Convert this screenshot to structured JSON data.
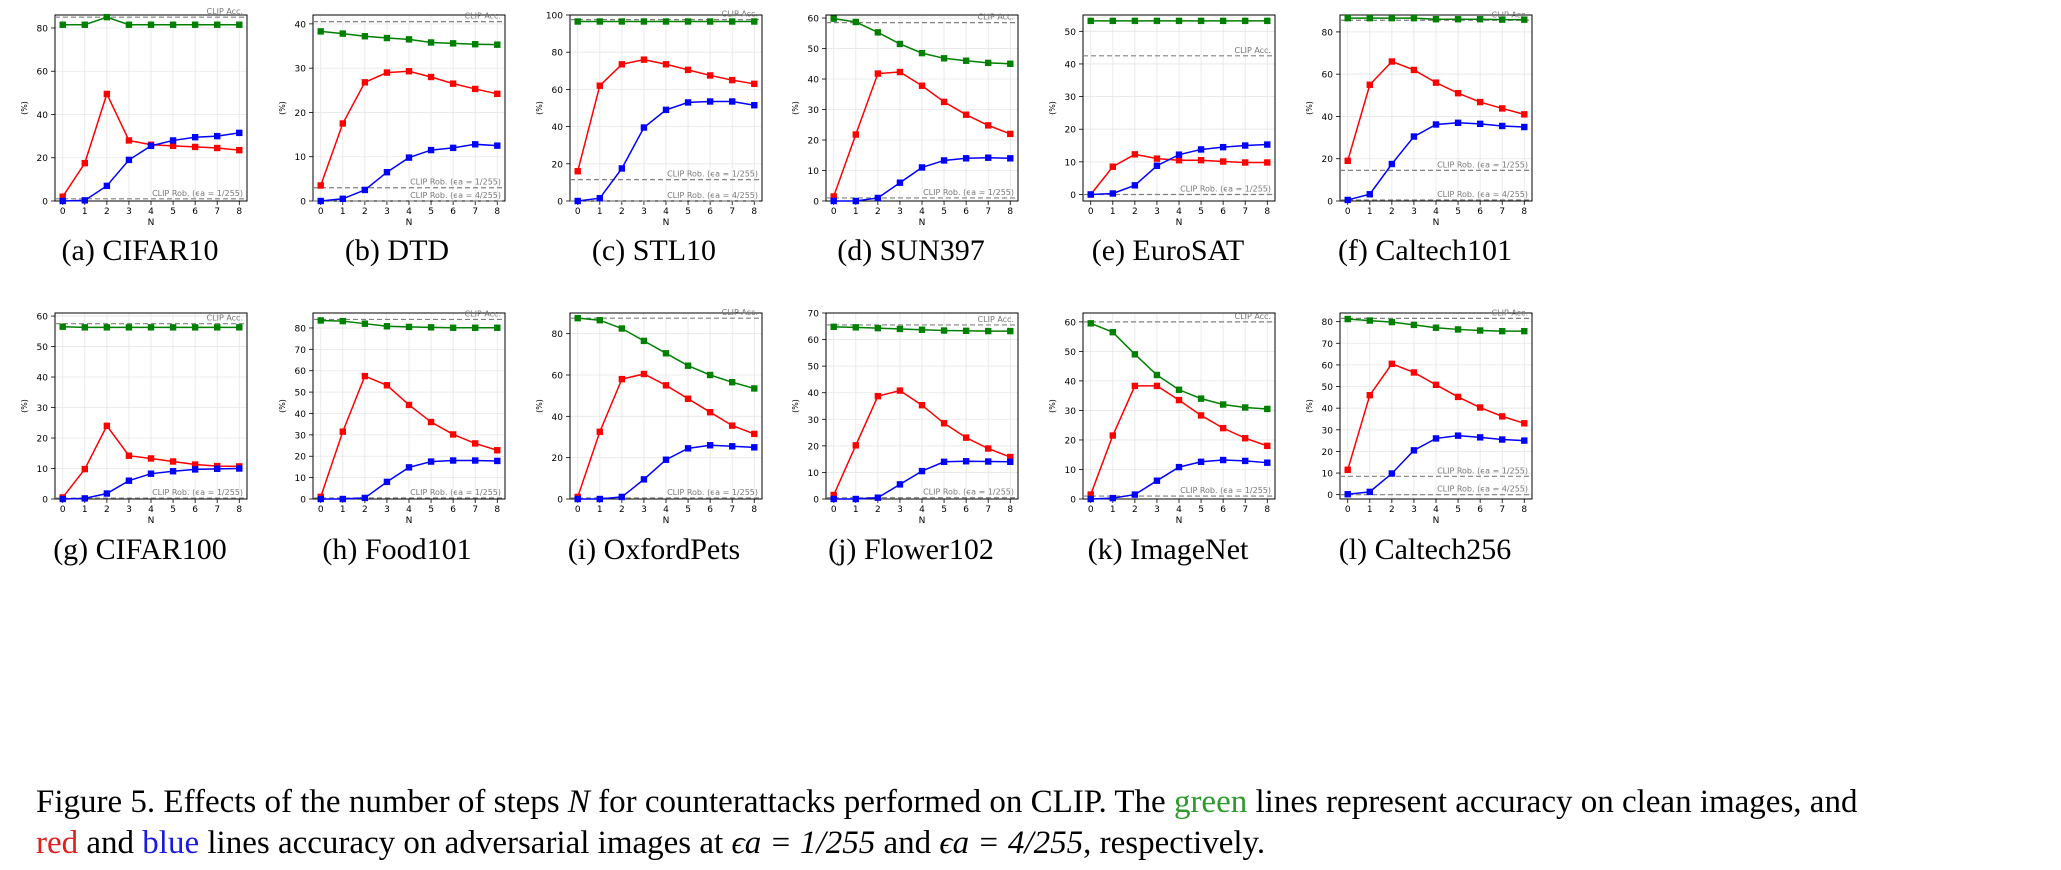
{
  "figure": {
    "caption": {
      "label": "Figure 5.",
      "text_1": "Effects of the number of steps",
      "var_n": "N",
      "text_2": "for counterattacks performed on CLIP. The",
      "green_word": "green",
      "text_3": "lines represent accuracy on clean images, and",
      "red_word": "red",
      "text_4": "and",
      "blue_word": "blue",
      "text_5": "lines accuracy on adversarial images at",
      "eps1": "ϵa = 1/255",
      "text_6": "and",
      "eps2": "ϵa = 4/255",
      "text_7": ", respectively."
    },
    "colors": {
      "clean": "#008000",
      "eps1": "#ff0000",
      "eps4": "#0000ff",
      "ref": "#808080"
    },
    "x_label": "N",
    "y_label": "(%)",
    "x_ticks": [
      "0",
      "1",
      "2",
      "3",
      "4",
      "5",
      "6",
      "7",
      "8"
    ]
  },
  "chart_data": [
    {
      "type": "line",
      "id": "a",
      "caption": "(a) CIFAR10",
      "ylim": [
        0,
        86
      ],
      "yticks": [
        0,
        20,
        40,
        60,
        80
      ],
      "x": [
        0,
        1,
        2,
        3,
        4,
        5,
        6,
        7,
        8
      ],
      "series": [
        {
          "name": "clean",
          "values": [
            81.5,
            81.5,
            85,
            81.5,
            81.5,
            81.5,
            81.5,
            81.5,
            81.5
          ]
        },
        {
          "name": "eps1",
          "values": [
            2,
            17.5,
            49.5,
            28,
            26,
            25.5,
            25,
            24.5,
            23.5
          ]
        },
        {
          "name": "eps4",
          "values": [
            0,
            0.3,
            7,
            19,
            25.5,
            28,
            29.5,
            30,
            31.5
          ]
        }
      ],
      "refs": [
        {
          "label": "CLIP Acc.",
          "value": 85
        },
        {
          "label": "CLIP Rob. (ϵa = 1/255)",
          "value": 1
        }
      ]
    },
    {
      "type": "line",
      "id": "b",
      "caption": "(b) DTD",
      "ylim": [
        0,
        42
      ],
      "yticks": [
        0,
        10,
        20,
        30,
        40
      ],
      "x": [
        0,
        1,
        2,
        3,
        4,
        5,
        6,
        7,
        8
      ],
      "series": [
        {
          "name": "clean",
          "values": [
            38.3,
            37.8,
            37.2,
            36.8,
            36.5,
            35.8,
            35.6,
            35.4,
            35.3
          ]
        },
        {
          "name": "eps1",
          "values": [
            3.5,
            17.5,
            26.8,
            29,
            29.3,
            28,
            26.5,
            25.3,
            24.2
          ]
        },
        {
          "name": "eps4",
          "values": [
            0,
            0.5,
            2.5,
            6.5,
            9.8,
            11.5,
            12,
            12.8,
            12.5
          ]
        }
      ],
      "refs": [
        {
          "label": "CLIP Acc.",
          "value": 40.5
        },
        {
          "label": "CLIP Rob. (ϵa = 1/255)",
          "value": 3
        },
        {
          "label": "CLIP Rob. (ϵa = 4/255)",
          "value": 0
        }
      ]
    },
    {
      "type": "line",
      "id": "c",
      "caption": "(c) STL10",
      "ylim": [
        0,
        100
      ],
      "yticks": [
        0,
        20,
        40,
        60,
        80,
        100
      ],
      "x": [
        0,
        1,
        2,
        3,
        4,
        5,
        6,
        7,
        8
      ],
      "series": [
        {
          "name": "clean",
          "values": [
            96.5,
            96.5,
            96.5,
            96.5,
            96.5,
            96.5,
            96.5,
            96.5,
            96.5
          ]
        },
        {
          "name": "eps1",
          "values": [
            16,
            62,
            73.5,
            76,
            73.5,
            70.5,
            67.5,
            65,
            63
          ]
        },
        {
          "name": "eps4",
          "values": [
            0,
            1.5,
            17.5,
            39.5,
            49,
            53,
            53.5,
            53.5,
            51.5
          ]
        }
      ],
      "refs": [
        {
          "label": "CLIP Acc.",
          "value": 97.5
        },
        {
          "label": "CLIP Rob. (ϵa = 1/255)",
          "value": 11.5
        },
        {
          "label": "CLIP Rob. (ϵa = 4/255)",
          "value": 0
        }
      ]
    },
    {
      "type": "line",
      "id": "d",
      "caption": "(d) SUN397",
      "ylim": [
        0,
        61
      ],
      "yticks": [
        0,
        10,
        20,
        30,
        40,
        50,
        60
      ],
      "x": [
        0,
        1,
        2,
        3,
        4,
        5,
        6,
        7,
        8
      ],
      "series": [
        {
          "name": "clean",
          "values": [
            59.8,
            58.7,
            55.3,
            51.5,
            48.5,
            46.8,
            46,
            45.3,
            45
          ]
        },
        {
          "name": "eps1",
          "values": [
            1.5,
            21.8,
            41.8,
            42.3,
            37.8,
            32.5,
            28.3,
            24.8,
            22
          ]
        },
        {
          "name": "eps4",
          "values": [
            0,
            0,
            1,
            6,
            11,
            13.3,
            14,
            14.2,
            14
          ]
        }
      ],
      "refs": [
        {
          "label": "CLIP Acc.",
          "value": 58.5
        },
        {
          "label": "CLIP Rob. (ϵa = 1/255)",
          "value": 1
        }
      ]
    },
    {
      "type": "line",
      "id": "e",
      "caption": "(e) EuroSAT",
      "ylim": [
        -2,
        55
      ],
      "yticks": [
        0,
        10,
        20,
        30,
        40,
        50
      ],
      "x": [
        0,
        1,
        2,
        3,
        4,
        5,
        6,
        7,
        8
      ],
      "series": [
        {
          "name": "clean",
          "values": [
            53.2,
            53.2,
            53.2,
            53.2,
            53.2,
            53.2,
            53.2,
            53.2,
            53.2
          ]
        },
        {
          "name": "eps1",
          "values": [
            0,
            8.5,
            12.3,
            11,
            10.5,
            10.5,
            10.1,
            9.8,
            9.8
          ]
        },
        {
          "name": "eps4",
          "values": [
            0,
            0.3,
            2.8,
            8.8,
            12.2,
            13.8,
            14.5,
            15,
            15.3
          ]
        }
      ],
      "refs": [
        {
          "label": "CLIP Acc.",
          "value": 42.5
        },
        {
          "label": "CLIP Rob. (ϵa = 1/255)",
          "value": 0
        }
      ]
    },
    {
      "type": "line",
      "id": "f",
      "caption": "(f) Caltech101",
      "ylim": [
        0,
        88
      ],
      "yticks": [
        0,
        20,
        40,
        60,
        80
      ],
      "x": [
        0,
        1,
        2,
        3,
        4,
        5,
        6,
        7,
        8
      ],
      "series": [
        {
          "name": "clean",
          "values": [
            86.5,
            86.5,
            86.5,
            86.5,
            86,
            86,
            86,
            85.8,
            85.8
          ]
        },
        {
          "name": "eps1",
          "values": [
            19,
            55,
            66,
            62,
            56,
            51,
            46.8,
            43.8,
            41
          ]
        },
        {
          "name": "eps4",
          "values": [
            0.5,
            3.2,
            17.5,
            30.5,
            36.2,
            37,
            36.5,
            35.5,
            35
          ]
        }
      ],
      "refs": [
        {
          "label": "CLIP Acc.",
          "value": 85.5
        },
        {
          "label": "CLIP Rob. (ϵa = 1/255)",
          "value": 14.5
        },
        {
          "label": "CLIP Rob. (ϵa = 4/255)",
          "value": 0.5
        }
      ]
    },
    {
      "type": "line",
      "id": "g",
      "caption": "(g) CIFAR100",
      "ylim": [
        0,
        61
      ],
      "yticks": [
        0,
        10,
        20,
        30,
        40,
        50,
        60
      ],
      "x": [
        0,
        1,
        2,
        3,
        4,
        5,
        6,
        7,
        8
      ],
      "series": [
        {
          "name": "clean",
          "values": [
            56.5,
            56.3,
            56.3,
            56.3,
            56.3,
            56.3,
            56.3,
            56.3,
            56.3
          ]
        },
        {
          "name": "eps1",
          "values": [
            0.5,
            9.8,
            24,
            14.2,
            13.3,
            12.3,
            11.3,
            10.8,
            10.7
          ]
        },
        {
          "name": "eps4",
          "values": [
            0,
            0.2,
            1.8,
            6,
            8.3,
            9.1,
            9.7,
            9.9,
            10
          ]
        }
      ],
      "refs": [
        {
          "label": "CLIP Acc.",
          "value": 57.5
        },
        {
          "label": "CLIP Rob. (ϵa = 1/255)",
          "value": 0.3
        }
      ]
    },
    {
      "type": "line",
      "id": "h",
      "caption": "(h) Food101",
      "ylim": [
        0,
        87
      ],
      "yticks": [
        0,
        10,
        20,
        30,
        40,
        50,
        60,
        70,
        80
      ],
      "x": [
        0,
        1,
        2,
        3,
        4,
        5,
        6,
        7,
        8
      ],
      "series": [
        {
          "name": "clean",
          "values": [
            83.5,
            83.2,
            82,
            80.8,
            80.5,
            80.3,
            80.1,
            80.1,
            80.1
          ]
        },
        {
          "name": "eps1",
          "values": [
            1,
            31.5,
            57.5,
            53.2,
            44,
            36,
            30.2,
            26,
            22.8
          ]
        },
        {
          "name": "eps4",
          "values": [
            0,
            0,
            0.5,
            8,
            14.8,
            17.5,
            18,
            18,
            17.8
          ]
        }
      ],
      "refs": [
        {
          "label": "CLIP Acc.",
          "value": 84
        },
        {
          "label": "CLIP Rob. (ϵa = 1/255)",
          "value": 0.5
        }
      ]
    },
    {
      "type": "line",
      "id": "i",
      "caption": "(i) OxfordPets",
      "ylim": [
        0,
        90
      ],
      "yticks": [
        0,
        20,
        40,
        60,
        80
      ],
      "x": [
        0,
        1,
        2,
        3,
        4,
        5,
        6,
        7,
        8
      ],
      "series": [
        {
          "name": "clean",
          "values": [
            87.5,
            86.5,
            82.5,
            76.5,
            70.5,
            64.5,
            60,
            56.5,
            53.5
          ]
        },
        {
          "name": "eps1",
          "values": [
            1,
            32.5,
            58,
            60.5,
            55,
            48.5,
            42,
            35.5,
            31.5
          ]
        },
        {
          "name": "eps4",
          "values": [
            0,
            0,
            1,
            9.5,
            19,
            24.5,
            26,
            25.5,
            25
          ]
        }
      ],
      "refs": [
        {
          "label": "CLIP Acc.",
          "value": 87.5
        },
        {
          "label": "CLIP Rob. (ϵa = 1/255)",
          "value": 0.5
        }
      ]
    },
    {
      "type": "line",
      "id": "j",
      "caption": "(j) Flower102",
      "ylim": [
        0,
        70
      ],
      "yticks": [
        0,
        10,
        20,
        30,
        40,
        50,
        60,
        70
      ],
      "x": [
        0,
        1,
        2,
        3,
        4,
        5,
        6,
        7,
        8
      ],
      "series": [
        {
          "name": "clean",
          "values": [
            64.8,
            64.6,
            64.3,
            64,
            63.7,
            63.4,
            63.3,
            63.2,
            63.2
          ]
        },
        {
          "name": "eps1",
          "values": [
            1.5,
            20.2,
            38.7,
            40.8,
            35.3,
            28.5,
            23.1,
            19,
            15.8
          ]
        },
        {
          "name": "eps4",
          "values": [
            0,
            0,
            0.5,
            5.5,
            10.5,
            14,
            14.2,
            14.1,
            14
          ]
        }
      ],
      "refs": [
        {
          "label": "CLIP Acc.",
          "value": 65.5
        },
        {
          "label": "CLIP Rob. (ϵa = 1/255)",
          "value": 0.5
        }
      ]
    },
    {
      "type": "line",
      "id": "k",
      "caption": "(k) ImageNet",
      "ylim": [
        0,
        63
      ],
      "yticks": [
        0,
        10,
        20,
        30,
        40,
        50,
        60
      ],
      "x": [
        0,
        1,
        2,
        3,
        4,
        5,
        6,
        7,
        8
      ],
      "series": [
        {
          "name": "clean",
          "values": [
            59.5,
            56.5,
            49,
            42,
            37,
            34,
            32,
            31,
            30.5
          ]
        },
        {
          "name": "eps1",
          "values": [
            1.5,
            21.5,
            38.3,
            38.3,
            33.5,
            28.3,
            24,
            20.6,
            18
          ]
        },
        {
          "name": "eps4",
          "values": [
            0,
            0.3,
            1.5,
            6.2,
            10.8,
            12.6,
            13.2,
            12.9,
            12.3
          ]
        }
      ],
      "refs": [
        {
          "label": "CLIP Acc.",
          "value": 60
        },
        {
          "label": "CLIP Rob. (ϵa = 1/255)",
          "value": 1
        }
      ]
    },
    {
      "type": "line",
      "id": "l",
      "caption": "(l) Caltech256",
      "ylim": [
        -2,
        84
      ],
      "yticks": [
        0,
        10,
        20,
        30,
        40,
        50,
        60,
        70,
        80
      ],
      "x": [
        0,
        1,
        2,
        3,
        4,
        5,
        6,
        7,
        8
      ],
      "series": [
        {
          "name": "clean",
          "values": [
            81.2,
            80.5,
            79.8,
            78.5,
            77.2,
            76.4,
            75.9,
            75.6,
            75.6
          ]
        },
        {
          "name": "eps1",
          "values": [
            11.5,
            46,
            60.5,
            56.5,
            50.8,
            45.2,
            40.3,
            36.2,
            33
          ]
        },
        {
          "name": "eps4",
          "values": [
            0.2,
            1.3,
            9.8,
            20.5,
            26,
            27.3,
            26.5,
            25.5,
            25
          ]
        }
      ],
      "refs": [
        {
          "label": "CLIP Acc.",
          "value": 81.5
        },
        {
          "label": "CLIP Rob. (ϵa = 1/255)",
          "value": 8.5
        },
        {
          "label": "CLIP Rob. (ϵa = 4/255)",
          "value": 0
        }
      ]
    }
  ]
}
